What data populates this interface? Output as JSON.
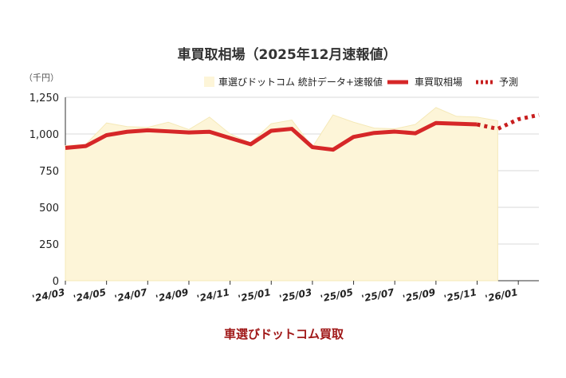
{
  "chart_data": {
    "type": "line",
    "title": "車買取相場（2025年12月速報値）",
    "y_unit": "（千円）",
    "footer": "車選びドットコム買取",
    "ylim": [
      0,
      1250
    ],
    "yticks": [
      "0",
      "250",
      "500",
      "750",
      "1,000",
      "1,250"
    ],
    "ytick_values": [
      0,
      250,
      500,
      750,
      1000,
      1250
    ],
    "x": [
      "2024-03",
      "2024-04",
      "2024-05",
      "2024-06",
      "2024-07",
      "2024-08",
      "2024-09",
      "2024-10",
      "2024-11",
      "2024-12",
      "2025-01",
      "2025-02",
      "2025-03",
      "2025-04",
      "2025-05",
      "2025-06",
      "2025-07",
      "2025-08",
      "2025-09",
      "2025-10",
      "2025-11",
      "2025-12",
      "2026-01",
      "2026-02"
    ],
    "xtick_labels": [
      {
        "x": "2024-03",
        "label": "'24/03"
      },
      {
        "x": "2024-05",
        "label": "'24/05"
      },
      {
        "x": "2024-07",
        "label": "'24/07"
      },
      {
        "x": "2024-09",
        "label": "'24/09"
      },
      {
        "x": "2024-11",
        "label": "'24/11"
      },
      {
        "x": "2025-01",
        "label": "'25/01"
      },
      {
        "x": "2025-03",
        "label": "'25/03"
      },
      {
        "x": "2025-05",
        "label": "'25/05"
      },
      {
        "x": "2025-07",
        "label": "'25/07"
      },
      {
        "x": "2025-09",
        "label": "'25/09"
      },
      {
        "x": "2025-11",
        "label": "'25/11"
      },
      {
        "x": "2026-01",
        "label": "'26/01"
      }
    ],
    "grid": true,
    "legend_position": "top-right",
    "series": [
      {
        "name": "車選びドットコム 統計データ+速報値",
        "kind": "area",
        "color": "#fdf5d8",
        "values": [
          920,
          930,
          1075,
          1050,
          1045,
          1080,
          1030,
          1115,
          1000,
          940,
          1070,
          1095,
          910,
          1130,
          1080,
          1040,
          1035,
          1065,
          1180,
          1120,
          1115,
          1090,
          null,
          null
        ]
      },
      {
        "name": "車買取相場",
        "kind": "line",
        "color": "#d62728",
        "values": [
          905,
          918,
          992,
          1015,
          1025,
          1018,
          1010,
          1015,
          972,
          930,
          1022,
          1035,
          910,
          893,
          980,
          1007,
          1016,
          1005,
          1075,
          1070,
          1065,
          null,
          null,
          null
        ]
      },
      {
        "name": "予測",
        "kind": "dotted",
        "color": "#c81e1e",
        "values": [
          null,
          null,
          null,
          null,
          null,
          null,
          null,
          null,
          null,
          null,
          null,
          null,
          null,
          null,
          null,
          null,
          null,
          null,
          null,
          null,
          1065,
          1035,
          1100,
          1130
        ]
      }
    ]
  }
}
